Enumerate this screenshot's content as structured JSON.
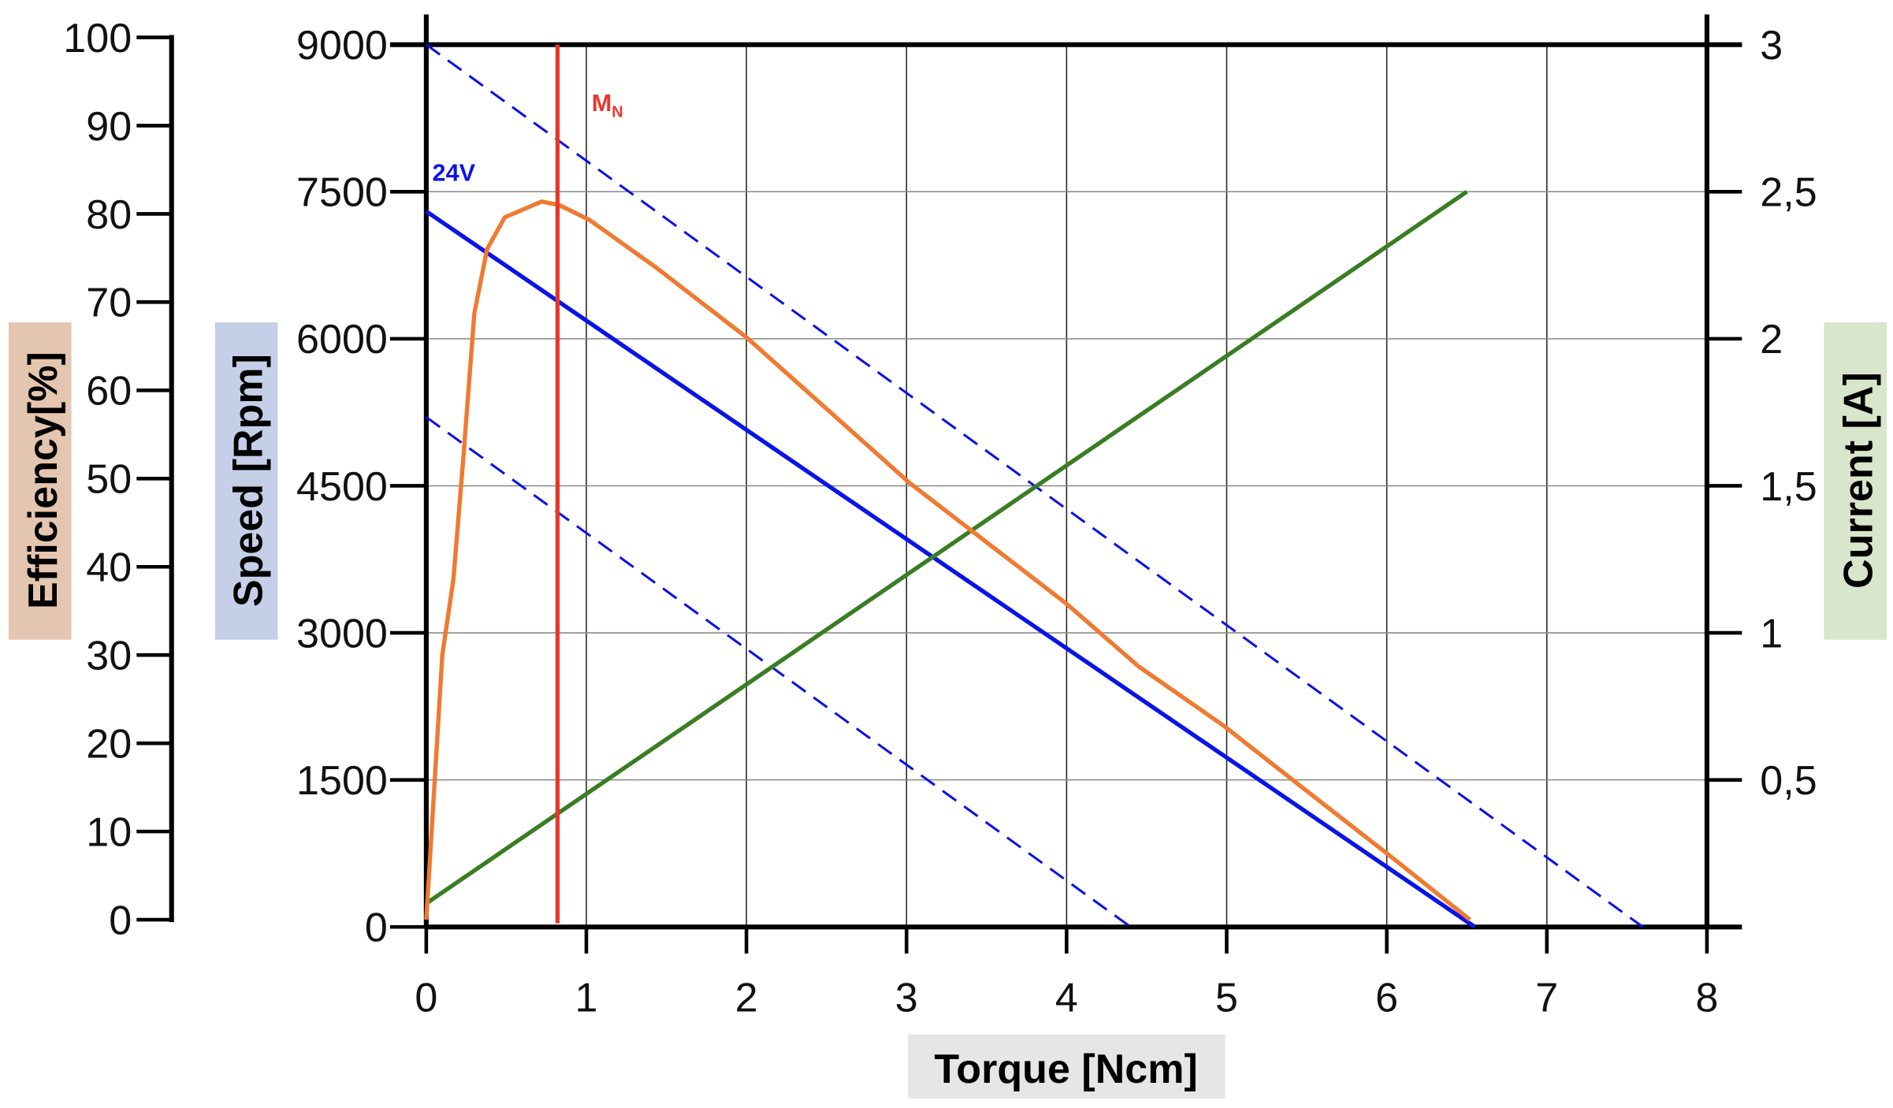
{
  "chart_data": {
    "type": "line",
    "xlabel": "Torque [Ncm]",
    "xlim": [
      0,
      8
    ],
    "xticks": [
      "0",
      "1",
      "2",
      "3",
      "4",
      "5",
      "6",
      "7",
      "8"
    ],
    "axes": {
      "speed": {
        "label": "Speed [Rpm]",
        "range": [
          0,
          9000
        ],
        "ticks": [
          "0",
          "1500",
          "3000",
          "4500",
          "6000",
          "7500",
          "9000"
        ],
        "label_bg": "#c6cfe8"
      },
      "efficiency": {
        "label": "Efficiency[%]",
        "range": [
          0,
          100
        ],
        "ticks": [
          "0",
          "10",
          "20",
          "30",
          "40",
          "50",
          "60",
          "70",
          "80",
          "90",
          "100"
        ],
        "label_bg": "#e4c6b0"
      },
      "current": {
        "label": "Current [A]",
        "range": [
          0,
          3
        ],
        "ticks": [
          "0,5",
          "1",
          "1,5",
          "2",
          "2,5",
          "3"
        ],
        "tick_values": [
          0.5,
          1,
          1.5,
          2,
          2.5,
          3
        ],
        "label_bg": "#d8e6cb"
      }
    },
    "xlabel_bg": "#e6e6e6",
    "grid": true,
    "series": [
      {
        "name": "24V",
        "axis": "speed",
        "color": "#0a14e6",
        "style": "solid",
        "x": [
          0,
          6.55
        ],
        "y": [
          7300,
          0
        ]
      },
      {
        "axis": "speed",
        "color": "#0a14e6",
        "style": "dashed",
        "x": [
          0,
          7.6
        ],
        "y": [
          9000,
          0
        ]
      },
      {
        "axis": "speed",
        "color": "#0a14e6",
        "style": "dashed",
        "x": [
          0,
          4.4
        ],
        "y": [
          5200,
          0
        ]
      },
      {
        "axis": "current",
        "color": "#3a7d24",
        "style": "solid",
        "x": [
          0,
          6.5
        ],
        "y": [
          0.08,
          2.5
        ]
      },
      {
        "axis": "efficiency",
        "color": "#ef7a30",
        "style": "solid",
        "x": [
          0,
          0.1,
          0.17,
          0.23,
          0.3,
          0.38,
          0.49,
          0.72,
          0.83,
          1.02,
          1.43,
          2.0,
          3.02,
          4.0,
          4.45,
          4.98,
          5.5,
          6.03,
          6.52
        ],
        "y": [
          0,
          30,
          38.6,
          52,
          68.7,
          76,
          79.6,
          81.4,
          81,
          79.3,
          74,
          66,
          49.5,
          35.8,
          28.7,
          22,
          14.6,
          7.1,
          0
        ]
      }
    ],
    "annotations": [
      {
        "label": "M",
        "subscript": "N",
        "type": "vertical-line",
        "x": 0.82,
        "color": "#e8372a"
      },
      {
        "label": "24V",
        "color": "#0a14e6"
      }
    ]
  }
}
